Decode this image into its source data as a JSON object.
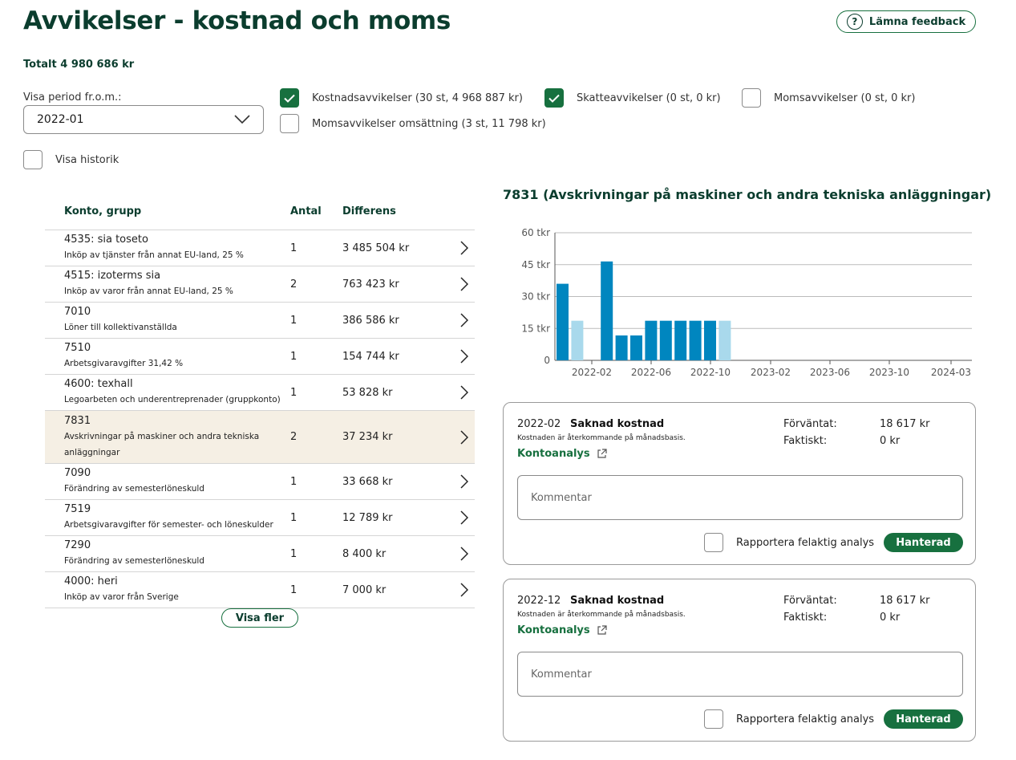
{
  "header": {
    "title": "Avvikelser - kostnad och moms",
    "feedback_label": "Lämna feedback",
    "total": "Totalt 4 980 686 kr"
  },
  "filters": {
    "period_label": "Visa period fr.o.m.:",
    "period_value": "2022-01",
    "cost_deviations": {
      "label": "Kostnadsavvikelser (30 st, 4 968 887 kr)",
      "checked": true
    },
    "tax_deviations": {
      "label": "Skatteavvikelser (0 st, 0 kr)",
      "checked": true
    },
    "vat_deviations": {
      "label": "Momsavvikelser (0 st, 0 kr)",
      "checked": false
    },
    "vat_turnover_deviations": {
      "label": "Momsavvikelser omsättning (3 st, 11 798 kr)",
      "checked": false
    },
    "show_history": {
      "label": "Visa historik",
      "checked": false
    }
  },
  "table": {
    "headers": {
      "account": "Konto, grupp",
      "count": "Antal",
      "diff": "Differens"
    },
    "rows": [
      {
        "name": "4535: sia toseto",
        "desc": "Inköp av tjänster från annat EU-land, 25 %",
        "count": "1",
        "diff": "3 485 504 kr"
      },
      {
        "name": "4515: izoterms sia",
        "desc": "Inköp av varor från annat EU-land, 25 %",
        "count": "2",
        "diff": "763 423 kr"
      },
      {
        "name": "7010",
        "desc": "Löner till kollektivanställda",
        "count": "1",
        "diff": "386 586 kr"
      },
      {
        "name": "7510",
        "desc": "Arbetsgivaravgifter 31,42 %",
        "count": "1",
        "diff": "154 744 kr"
      },
      {
        "name": "4600: texhall",
        "desc": "Legoarbeten och underentreprenader (gruppkonto)",
        "count": "1",
        "diff": "53 828 kr"
      },
      {
        "name": "7831",
        "desc": "Avskrivningar på maskiner och andra tekniska anläggningar",
        "count": "2",
        "diff": "37 234 kr",
        "selected": true
      },
      {
        "name": "7090",
        "desc": "Förändring av semesterlöneskuld",
        "count": "1",
        "diff": "33 668 kr"
      },
      {
        "name": "7519",
        "desc": "Arbetsgivaravgifter för semester- och löneskulder",
        "count": "1",
        "diff": "12 789 kr"
      },
      {
        "name": "7290",
        "desc": "Förändring av semesterlöneskuld",
        "count": "1",
        "diff": "8 400 kr"
      },
      {
        "name": "4000: heri",
        "desc": "Inköp av varor från Sverige",
        "count": "1",
        "diff": "7 000 kr"
      }
    ],
    "show_more": "Visa fler"
  },
  "detail": {
    "title": "7831 (Avskrivningar på maskiner och andra tekniska anläggningar)"
  },
  "chart_data": {
    "type": "bar",
    "title": "7831 (Avskrivningar på maskiner och andra tekniska anläggningar)",
    "ylim": [
      0,
      60000
    ],
    "yticks": [
      0,
      15000,
      30000,
      45000,
      60000
    ],
    "ytick_labels": [
      "0",
      "15 tkr",
      "30 tkr",
      "45 tkr",
      "60 tkr"
    ],
    "xtick_labels": [
      "2022-02",
      "2022-06",
      "2022-10",
      "2023-02",
      "2023-06",
      "2023-10",
      "2024-03"
    ],
    "grid": true,
    "categories": [
      "2022-01",
      "2022-02",
      "2022-03",
      "2022-04",
      "2022-05",
      "2022-06",
      "2022-07",
      "2022-08",
      "2022-09",
      "2022-10",
      "2022-11",
      "2022-12"
    ],
    "values": [
      36000,
      18617,
      0,
      46500,
      11700,
      11700,
      18617,
      18617,
      18617,
      18617,
      18617,
      18617
    ],
    "highlighted": [
      false,
      true,
      false,
      false,
      false,
      false,
      false,
      false,
      false,
      false,
      false,
      true
    ],
    "colors": {
      "bar": "#0086bf",
      "highlight": "#a9d9ec",
      "grid": "#bbbbbb"
    }
  },
  "cards": [
    {
      "date": "2022-02",
      "type": "Saknad kostnad",
      "desc": "Kostnaden är återkommande på månadsbasis.",
      "link": "Kontoanalys",
      "expected_label": "Förväntat:",
      "expected_value": "18 617 kr",
      "actual_label": "Faktiskt:",
      "actual_value": "0 kr",
      "comment_placeholder": "Kommentar",
      "report_label": "Rapportera felaktig analys",
      "handled_label": "Hanterad"
    },
    {
      "date": "2022-12",
      "type": "Saknad kostnad",
      "desc": "Kostnaden är återkommande på månadsbasis.",
      "link": "Kontoanalys",
      "expected_label": "Förväntat:",
      "expected_value": "18 617 kr",
      "actual_label": "Faktiskt:",
      "actual_value": "0 kr",
      "comment_placeholder": "Kommentar",
      "report_label": "Rapportera felaktig analys",
      "handled_label": "Hanterad"
    }
  ],
  "colors": {
    "brand_dark": "#0b3d2e",
    "brand_green": "#17703f",
    "selected_row": "#f5efe4"
  }
}
